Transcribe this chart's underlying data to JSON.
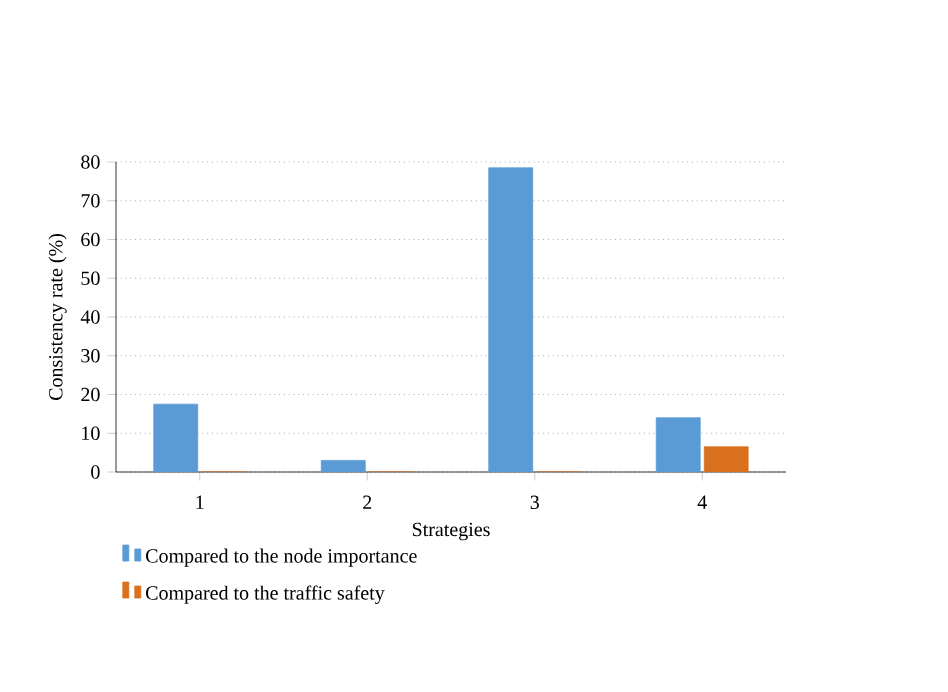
{
  "chart_data": {
    "type": "bar",
    "xlabel": "Strategies",
    "ylabel": "Consistency rate (%)",
    "categories": [
      "1",
      "2",
      "3",
      "4"
    ],
    "series": [
      {
        "name": "Compared to the node importance",
        "color": "#5b9bd5",
        "values": [
          17.5,
          3,
          78.5,
          14
        ]
      },
      {
        "name": "Compared to the traffic safety",
        "color": "#d9701e",
        "values": [
          0,
          0,
          0,
          6.5
        ]
      }
    ],
    "ylim": [
      0,
      80
    ],
    "yticks": [
      0,
      10,
      20,
      30,
      40,
      50,
      60,
      70,
      80
    ],
    "grid": "y",
    "legend": "bottom"
  }
}
